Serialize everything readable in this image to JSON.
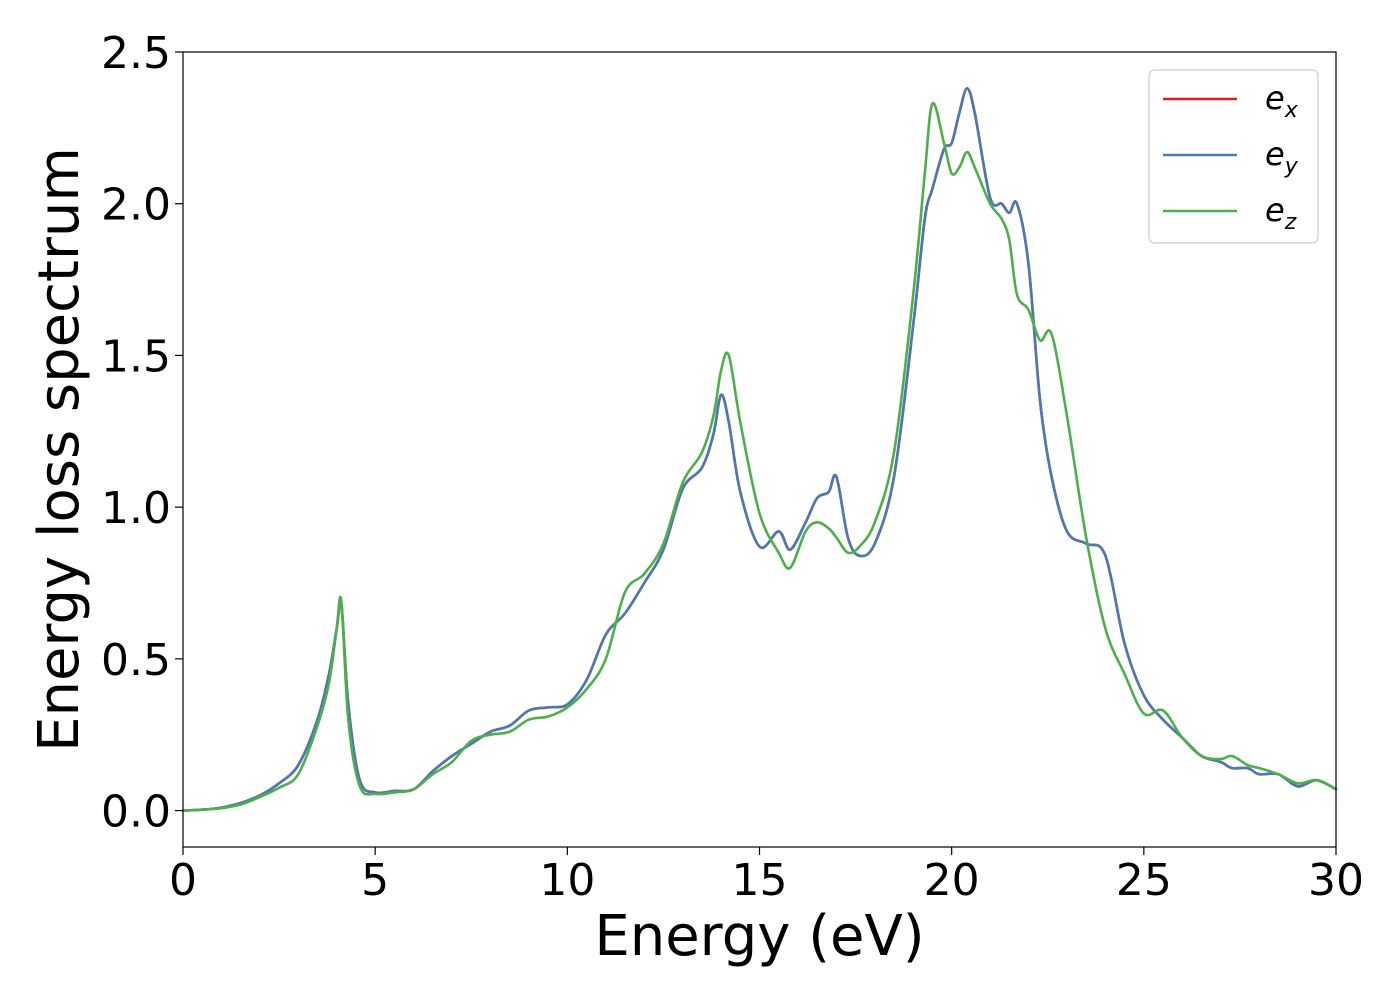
{
  "chart_data": {
    "type": "line",
    "title": "",
    "xlabel": "Energy (eV)",
    "ylabel": "Energy loss spectrum",
    "xlim": [
      0,
      30
    ],
    "ylim": [
      -0.12,
      2.5
    ],
    "xticks": [
      "0",
      "5",
      "10",
      "15",
      "20",
      "25",
      "30"
    ],
    "yticks": [
      "0.0",
      "0.5",
      "1.0",
      "1.5",
      "2.0",
      "2.5"
    ],
    "grid": false,
    "legend_position": "top-right",
    "x": [
      0,
      0.5,
      1,
      1.5,
      2,
      2.5,
      3,
      3.5,
      3.8,
      4.0,
      4.12,
      4.3,
      4.6,
      5,
      5.5,
      6,
      6.5,
      7,
      7.5,
      8,
      8.5,
      9,
      9.5,
      10,
      10.5,
      11,
      11.5,
      12,
      12.5,
      13,
      13.5,
      13.8,
      14.0,
      14.2,
      14.5,
      15,
      15.5,
      15.8,
      16.2,
      16.5,
      16.8,
      17.0,
      17.3,
      17.6,
      18,
      18.5,
      19,
      19.3,
      19.5,
      19.8,
      20.0,
      20.2,
      20.4,
      20.6,
      21.0,
      21.3,
      21.5,
      21.7,
      22.0,
      22.3,
      22.6,
      23.0,
      23.5,
      24.0,
      24.5,
      25.0,
      25.5,
      26.0,
      26.5,
      27.0,
      27.3,
      27.7,
      28.0,
      28.5,
      29.0,
      29.5,
      30.0
    ],
    "series": [
      {
        "name": "e_x",
        "label_base": "e",
        "label_sub": "x",
        "color": "#e41a1c",
        "values": [
          0.0,
          0.003,
          0.01,
          0.025,
          0.05,
          0.09,
          0.15,
          0.3,
          0.45,
          0.6,
          0.68,
          0.35,
          0.1,
          0.06,
          0.065,
          0.07,
          0.13,
          0.18,
          0.22,
          0.26,
          0.28,
          0.33,
          0.34,
          0.35,
          0.43,
          0.58,
          0.65,
          0.75,
          0.86,
          1.06,
          1.13,
          1.24,
          1.37,
          1.28,
          1.05,
          0.87,
          0.92,
          0.86,
          0.95,
          1.03,
          1.05,
          1.1,
          0.9,
          0.84,
          0.88,
          1.1,
          1.6,
          1.95,
          2.05,
          2.18,
          2.2,
          2.3,
          2.38,
          2.3,
          2.02,
          2.0,
          1.97,
          2.0,
          1.8,
          1.35,
          1.1,
          0.92,
          0.88,
          0.84,
          0.55,
          0.38,
          0.3,
          0.24,
          0.18,
          0.16,
          0.14,
          0.14,
          0.12,
          0.12,
          0.08,
          0.1,
          0.07
        ]
      },
      {
        "name": "e_y",
        "label_base": "e",
        "label_sub": "y",
        "color": "#4a7ab5",
        "values": [
          0.0,
          0.003,
          0.01,
          0.025,
          0.05,
          0.09,
          0.15,
          0.3,
          0.45,
          0.6,
          0.68,
          0.35,
          0.1,
          0.06,
          0.065,
          0.07,
          0.13,
          0.18,
          0.22,
          0.26,
          0.28,
          0.33,
          0.34,
          0.35,
          0.43,
          0.58,
          0.65,
          0.75,
          0.86,
          1.06,
          1.13,
          1.24,
          1.37,
          1.28,
          1.05,
          0.87,
          0.92,
          0.86,
          0.95,
          1.03,
          1.05,
          1.1,
          0.9,
          0.84,
          0.88,
          1.1,
          1.6,
          1.95,
          2.05,
          2.18,
          2.2,
          2.3,
          2.38,
          2.3,
          2.02,
          2.0,
          1.97,
          2.0,
          1.8,
          1.35,
          1.1,
          0.92,
          0.88,
          0.84,
          0.55,
          0.38,
          0.3,
          0.24,
          0.18,
          0.16,
          0.14,
          0.14,
          0.12,
          0.12,
          0.08,
          0.1,
          0.07
        ]
      },
      {
        "name": "e_z",
        "label_base": "e",
        "label_sub": "z",
        "color": "#4daf4a",
        "values": [
          0.0,
          0.003,
          0.008,
          0.02,
          0.045,
          0.075,
          0.12,
          0.28,
          0.42,
          0.6,
          0.69,
          0.3,
          0.08,
          0.055,
          0.06,
          0.07,
          0.12,
          0.16,
          0.23,
          0.25,
          0.26,
          0.3,
          0.31,
          0.34,
          0.4,
          0.5,
          0.72,
          0.78,
          0.88,
          1.08,
          1.18,
          1.3,
          1.45,
          1.5,
          1.28,
          0.98,
          0.85,
          0.8,
          0.92,
          0.95,
          0.93,
          0.9,
          0.85,
          0.87,
          0.95,
          1.18,
          1.7,
          2.1,
          2.33,
          2.2,
          2.1,
          2.12,
          2.17,
          2.12,
          2.0,
          1.95,
          1.88,
          1.7,
          1.65,
          1.55,
          1.57,
          1.3,
          0.9,
          0.6,
          0.45,
          0.32,
          0.33,
          0.24,
          0.18,
          0.17,
          0.18,
          0.15,
          0.14,
          0.12,
          0.09,
          0.1,
          0.07
        ]
      }
    ]
  }
}
